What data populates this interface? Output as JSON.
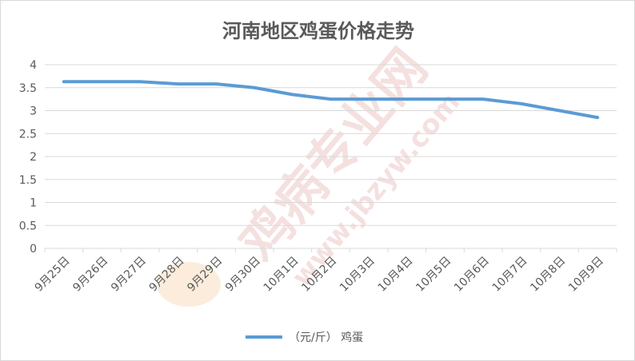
{
  "chart_data": {
    "type": "line",
    "title": "河南地区鸡蛋价格走势",
    "categories": [
      "9月25日",
      "9月26日",
      "9月27日",
      "9月28日",
      "9月29日",
      "9月30日",
      "10月1日",
      "10月2日",
      "10月3日",
      "10月4日",
      "10月5日",
      "10月6日",
      "10月7日",
      "10月8日",
      "10月9日"
    ],
    "series": [
      {
        "name": "（元/斤） 鸡蛋",
        "values": [
          3.63,
          3.63,
          3.63,
          3.58,
          3.58,
          3.5,
          3.35,
          3.25,
          3.25,
          3.25,
          3.25,
          3.25,
          3.15,
          3.0,
          2.85
        ],
        "color": "#5b9bd5"
      }
    ],
    "y_ticks": [
      "0",
      "0.5",
      "1",
      "1.5",
      "2",
      "2.5",
      "3",
      "3.5",
      "4"
    ],
    "ylim": [
      0,
      4
    ],
    "grid": true,
    "legend": "bottom-center"
  },
  "watermark": {
    "brand": "鸡病专业网",
    "url": "www.jbzyw.com"
  }
}
